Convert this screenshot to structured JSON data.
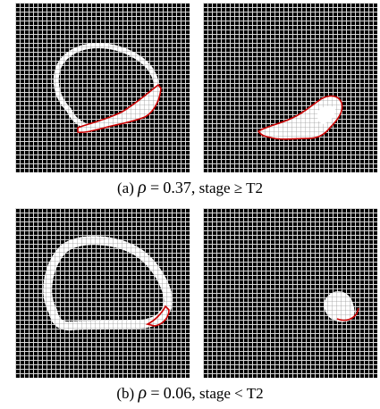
{
  "captions": [
    {
      "label": "(a)",
      "symbol": "ρ",
      "equals": "=",
      "value": "0.37,",
      "stage_text": "stage ≥ T2"
    },
    {
      "label": "(b)",
      "symbol": "ρ",
      "equals": "=",
      "value": "0.06,",
      "stage_text": "stage < T2"
    }
  ],
  "colors": {
    "background": "#000000",
    "grid": "#d8d8d8",
    "mask_fill": "#ffffff",
    "overlap_outline": "#cc0000"
  }
}
